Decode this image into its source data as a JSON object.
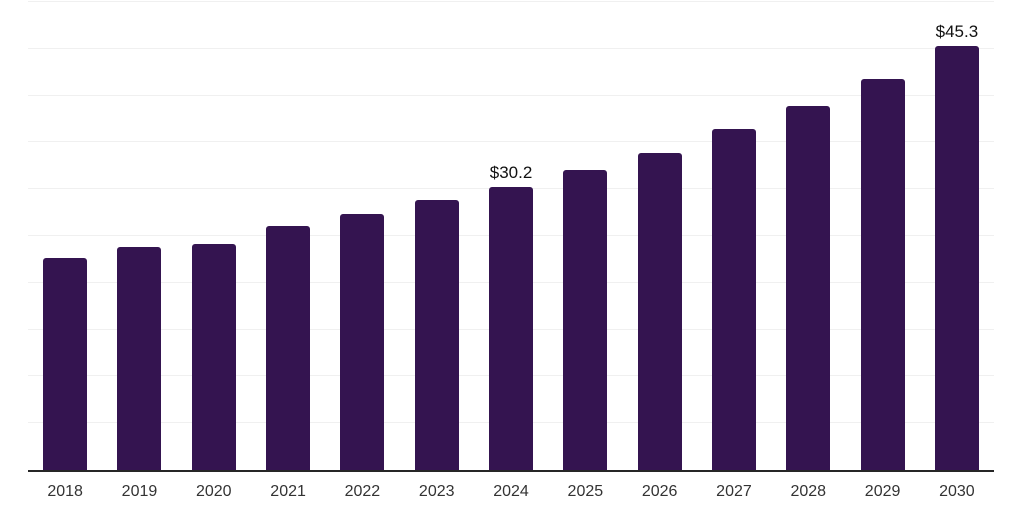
{
  "chart_data": {
    "type": "bar",
    "categories": [
      "2018",
      "2019",
      "2020",
      "2021",
      "2022",
      "2023",
      "2024",
      "2025",
      "2026",
      "2027",
      "2028",
      "2029",
      "2030"
    ],
    "values": [
      22.6,
      23.8,
      24.1,
      26.1,
      27.4,
      28.8,
      30.2,
      32.1,
      33.9,
      36.4,
      38.9,
      41.8,
      45.3
    ],
    "data_labels": [
      "",
      "",
      "",
      "",
      "",
      "",
      "$30.2",
      "",
      "",
      "",
      "",
      "",
      "$45.3"
    ],
    "ylim": [
      0,
      50
    ],
    "gridline_step": 5,
    "grid": true,
    "legend_position": "none",
    "colors": {
      "bar": "#341450",
      "gridline": "#f0f0f0",
      "axis_line": "#262626",
      "tick_label": "#333333",
      "data_label": "#111111",
      "background": "#ffffff"
    }
  }
}
